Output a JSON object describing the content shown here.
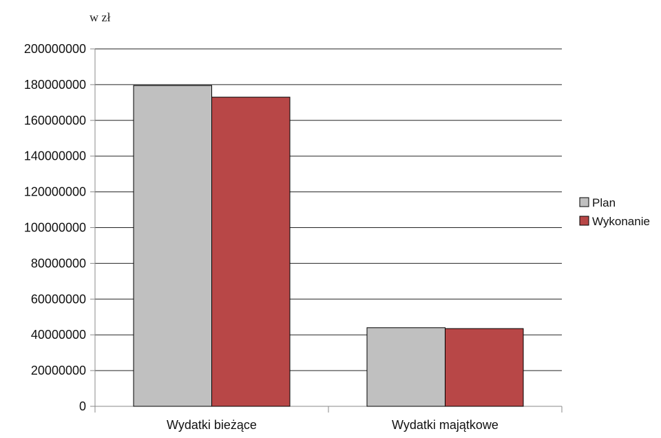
{
  "chart_data": {
    "type": "bar",
    "unit_label": "w zł",
    "title": "",
    "xlabel": "",
    "ylabel": "",
    "categories": [
      "Wydatki bieżące",
      "Wydatki majątkowe"
    ],
    "series": [
      {
        "name": "Plan",
        "values": [
          179500000,
          44000000
        ],
        "color": "#c0c0c0"
      },
      {
        "name": "Wykonanie",
        "values": [
          173000000,
          43500000
        ],
        "color": "#b84747"
      }
    ],
    "ylim": [
      0,
      200000000
    ],
    "yticks": [
      "0",
      "20000000",
      "40000000",
      "60000000",
      "80000000",
      "100000000",
      "120000000",
      "140000000",
      "160000000",
      "180000000",
      "200000000"
    ],
    "grid": true,
    "legend_position": "right"
  }
}
